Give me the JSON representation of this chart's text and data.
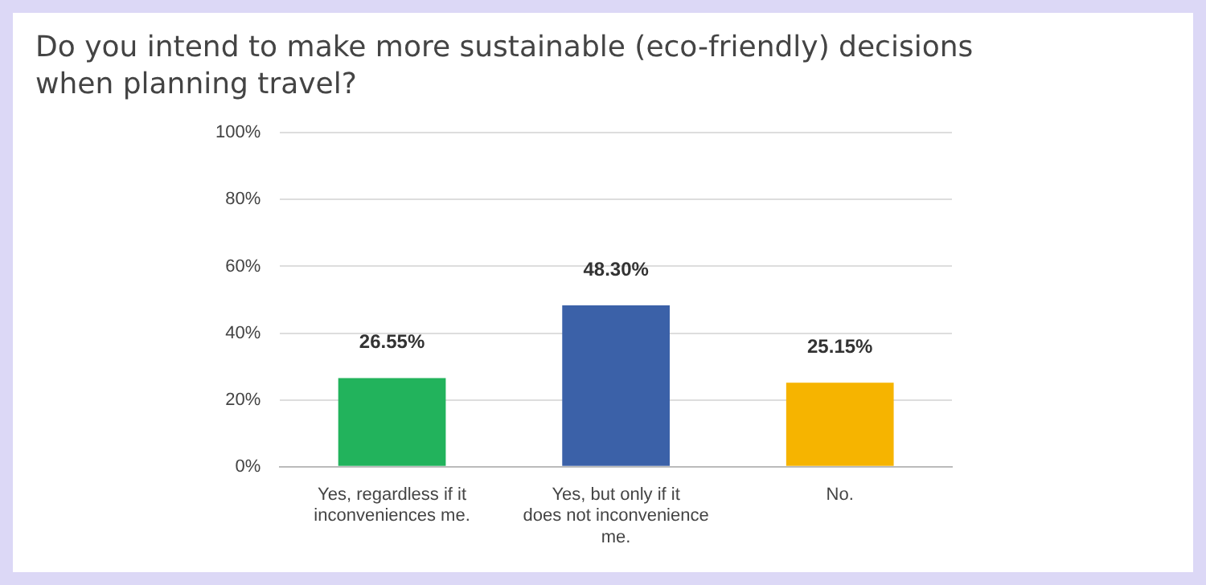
{
  "chart_data": {
    "type": "bar",
    "title": "Do you intend to make more sustainable (eco-friendly) decisions when planning travel?",
    "categories": [
      "Yes, regardless if it inconveniences me.",
      "Yes, but only if it does not inconvenience me.",
      "No."
    ],
    "values": [
      26.55,
      48.3,
      25.15
    ],
    "colors": [
      "#22b35c",
      "#3b61a8",
      "#f6b400"
    ],
    "value_labels": [
      "26.55%",
      "48.30%",
      "25.15%"
    ],
    "ylim": [
      0,
      100
    ],
    "yticks": [
      {
        "value": 0,
        "label": "0%"
      },
      {
        "value": 20,
        "label": "20%"
      },
      {
        "value": 40,
        "label": "40%"
      },
      {
        "value": 60,
        "label": "60%"
      },
      {
        "value": 80,
        "label": "80%"
      },
      {
        "value": 100,
        "label": "100%"
      }
    ],
    "grid": "y",
    "legend": false
  }
}
